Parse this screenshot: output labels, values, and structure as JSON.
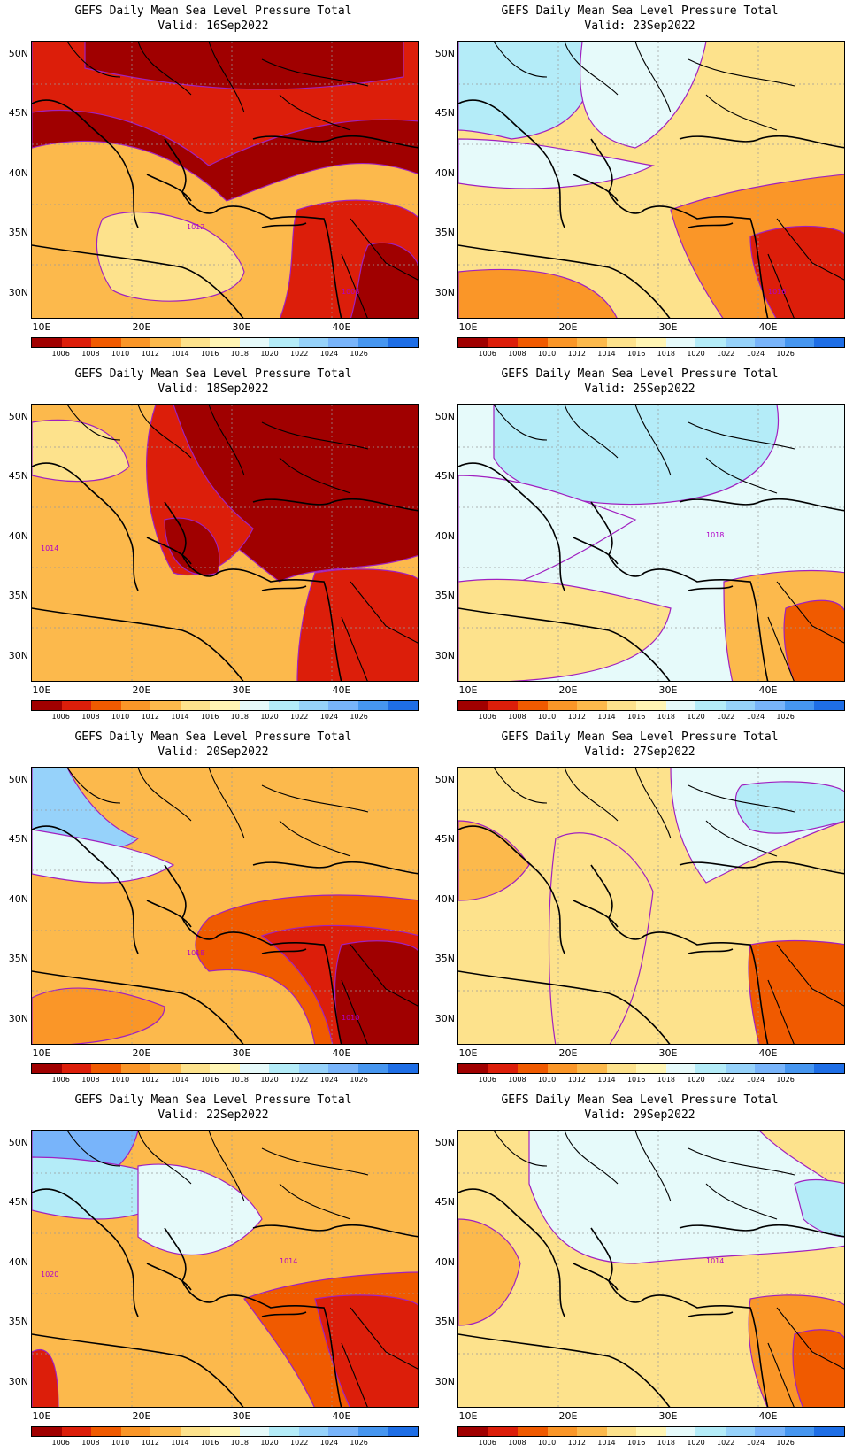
{
  "title_prefix": "GEFS Daily Mean Sea Level Pressure Total",
  "colorbar": {
    "colors": [
      "#a00000",
      "#dc1e0a",
      "#f05a00",
      "#fa9628",
      "#fcb94c",
      "#fde28c",
      "#fff5b4",
      "#e6fafa",
      "#b4ecf8",
      "#96d2fa",
      "#78b4fa",
      "#4696f0",
      "#1e6ee6"
    ],
    "ticks": [
      "1006",
      "1008",
      "1010",
      "1012",
      "1014",
      "1016",
      "1018",
      "1020",
      "1022",
      "1024",
      "1026"
    ]
  },
  "axes": {
    "lat_labels": [
      "50N",
      "45N",
      "40N",
      "35N",
      "30N"
    ],
    "lon_labels": [
      "10E",
      "20E",
      "30E",
      "40E"
    ]
  },
  "panels": [
    {
      "valid": "Valid: 16Sep2022",
      "contour_labels": [
        "1012",
        "1008"
      ],
      "base_color": "#fcb94c"
    },
    {
      "valid": "Valid: 23Sep2022",
      "contour_labels": [
        "1016"
      ],
      "base_color": "#fde28c"
    },
    {
      "valid": "Valid: 18Sep2022",
      "contour_labels": [
        "1014"
      ],
      "base_color": "#fcb94c"
    },
    {
      "valid": "Valid: 25Sep2022",
      "contour_labels": [
        "1018"
      ],
      "base_color": "#e6fafa"
    },
    {
      "valid": "Valid: 20Sep2022",
      "contour_labels": [
        "1018",
        "1010"
      ],
      "base_color": "#fcb94c"
    },
    {
      "valid": "Valid: 27Sep2022",
      "contour_labels": [],
      "base_color": "#fde28c"
    },
    {
      "valid": "Valid: 22Sep2022",
      "contour_labels": [
        "1020",
        "1014"
      ],
      "base_color": "#fcb94c"
    },
    {
      "valid": "Valid: 29Sep2022",
      "contour_labels": [
        "1014"
      ],
      "base_color": "#fde28c"
    }
  ]
}
